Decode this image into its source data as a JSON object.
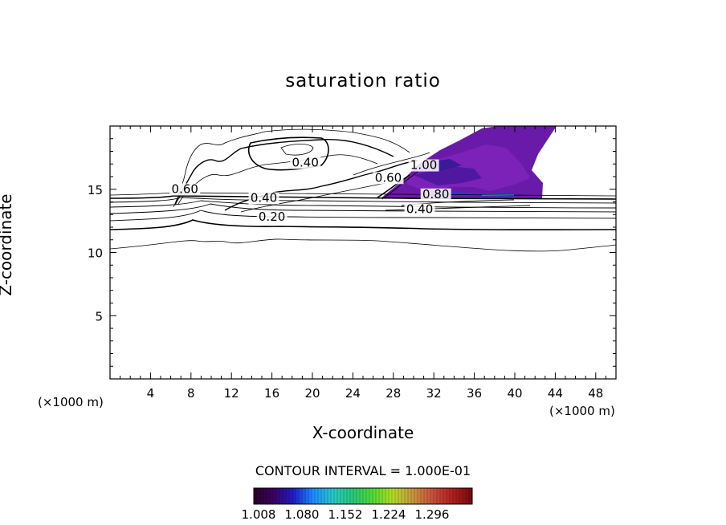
{
  "chart_data": {
    "type": "contour",
    "title": "saturation ratio",
    "xlabel": "X-coordinate",
    "ylabel": "Z-coordinate",
    "x_unit_label": "(×1000 m)",
    "xlim": [
      0,
      50
    ],
    "ylim": [
      0,
      20
    ],
    "x_ticks": [
      4,
      8,
      12,
      16,
      20,
      24,
      28,
      32,
      36,
      40,
      44,
      48
    ],
    "y_ticks": [
      5,
      10,
      15
    ],
    "contour_labels": [
      {
        "text": "0.40",
        "x": 19.3,
        "y": 16.8
      },
      {
        "text": "0.60",
        "x": 7.4,
        "y": 14.7
      },
      {
        "text": "0.40",
        "x": 15.2,
        "y": 14.0
      },
      {
        "text": "0.20",
        "x": 16.0,
        "y": 12.5
      },
      {
        "text": "0.60",
        "x": 27.5,
        "y": 15.6
      },
      {
        "text": "1.00",
        "x": 31.0,
        "y": 16.6
      },
      {
        "text": "0.80",
        "x": 32.2,
        "y": 14.3
      },
      {
        "text": "0.40",
        "x": 30.6,
        "y": 13.1
      }
    ],
    "contour_interval_text": "CONTOUR INTERVAL = 1.000E-01",
    "colorbar": {
      "ticks": [
        "1.008",
        "1.080",
        "1.152",
        "1.224",
        "1.296"
      ],
      "colors": [
        "#280028",
        "#3c0064",
        "#1e1ec8",
        "#1e8cff",
        "#28c8c8",
        "#28c878",
        "#50dc32",
        "#b4dc28",
        "#c8963c",
        "#c8503c",
        "#b41e1e",
        "#780a0a"
      ]
    }
  }
}
